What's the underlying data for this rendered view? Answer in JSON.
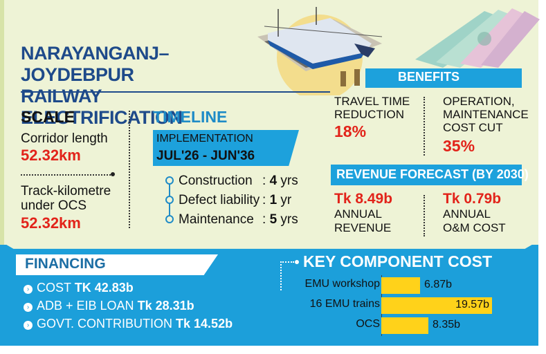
{
  "title": {
    "line1": "NARAYANGANJ–JOYDEBPUR",
    "line2": "RAILWAY ELECTRIFICATION"
  },
  "scale": {
    "heading": "SCALE",
    "corridor_label": "Corridor length",
    "corridor_value": "52.32km",
    "track_label_1": "Track-kilometre",
    "track_label_2": "under OCS",
    "track_value": "52.32km"
  },
  "timeline": {
    "heading": "TIMELINE",
    "impl_label": "IMPLEMENTATION",
    "impl_dates": "JUL'26 - JUN'36",
    "items": [
      {
        "label": "Construction",
        "colon": ":",
        "num": "4",
        "unit": "yrs"
      },
      {
        "label": "Defect liability",
        "colon": ":",
        "num": "1",
        "unit": "yr"
      },
      {
        "label": "Maintenance",
        "colon": ":",
        "num": "5",
        "unit": "yrs"
      }
    ]
  },
  "benefits": {
    "heading": "BENEFITS",
    "travel_1": "TRAVEL TIME",
    "travel_2": "REDUCTION",
    "travel_value": "18%",
    "om_1": "OPERATION,",
    "om_2": "MAINTENANCE",
    "om_3": "COST CUT",
    "om_value": "35%"
  },
  "revenue": {
    "heading": "REVENUE FORECAST (BY 2030)",
    "annual_revenue_value": "Tk 8.49b",
    "annual_revenue_1": "ANNUAL",
    "annual_revenue_2": "REVENUE",
    "om_cost_value": "Tk 0.79b",
    "om_cost_1": "ANNUAL",
    "om_cost_2": "O&M COST"
  },
  "financing": {
    "heading": "FINANCING",
    "rows": [
      {
        "label": "COST",
        "value": "TK 42.83b"
      },
      {
        "label": "ADB + EIB LOAN",
        "value": "Tk 28.31b"
      },
      {
        "label": "GOVT. CONTRIBUTION",
        "value": "Tk 14.52b"
      }
    ]
  },
  "chart_data": {
    "type": "bar",
    "title": "KEY COMPONENT COST",
    "categories": [
      "EMU workshop",
      "16 EMU trains",
      "OCS"
    ],
    "values": [
      6.87,
      19.57,
      8.35
    ],
    "value_labels": [
      "6.87b",
      "19.57b",
      "8.35b"
    ],
    "orientation": "horizontal",
    "bar_color": "#ffd21a"
  },
  "colors": {
    "brand_blue": "#1e4a8a",
    "accent_blue": "#1da1dc",
    "highlight_red": "#e2231a",
    "background": "#eef3d6"
  }
}
